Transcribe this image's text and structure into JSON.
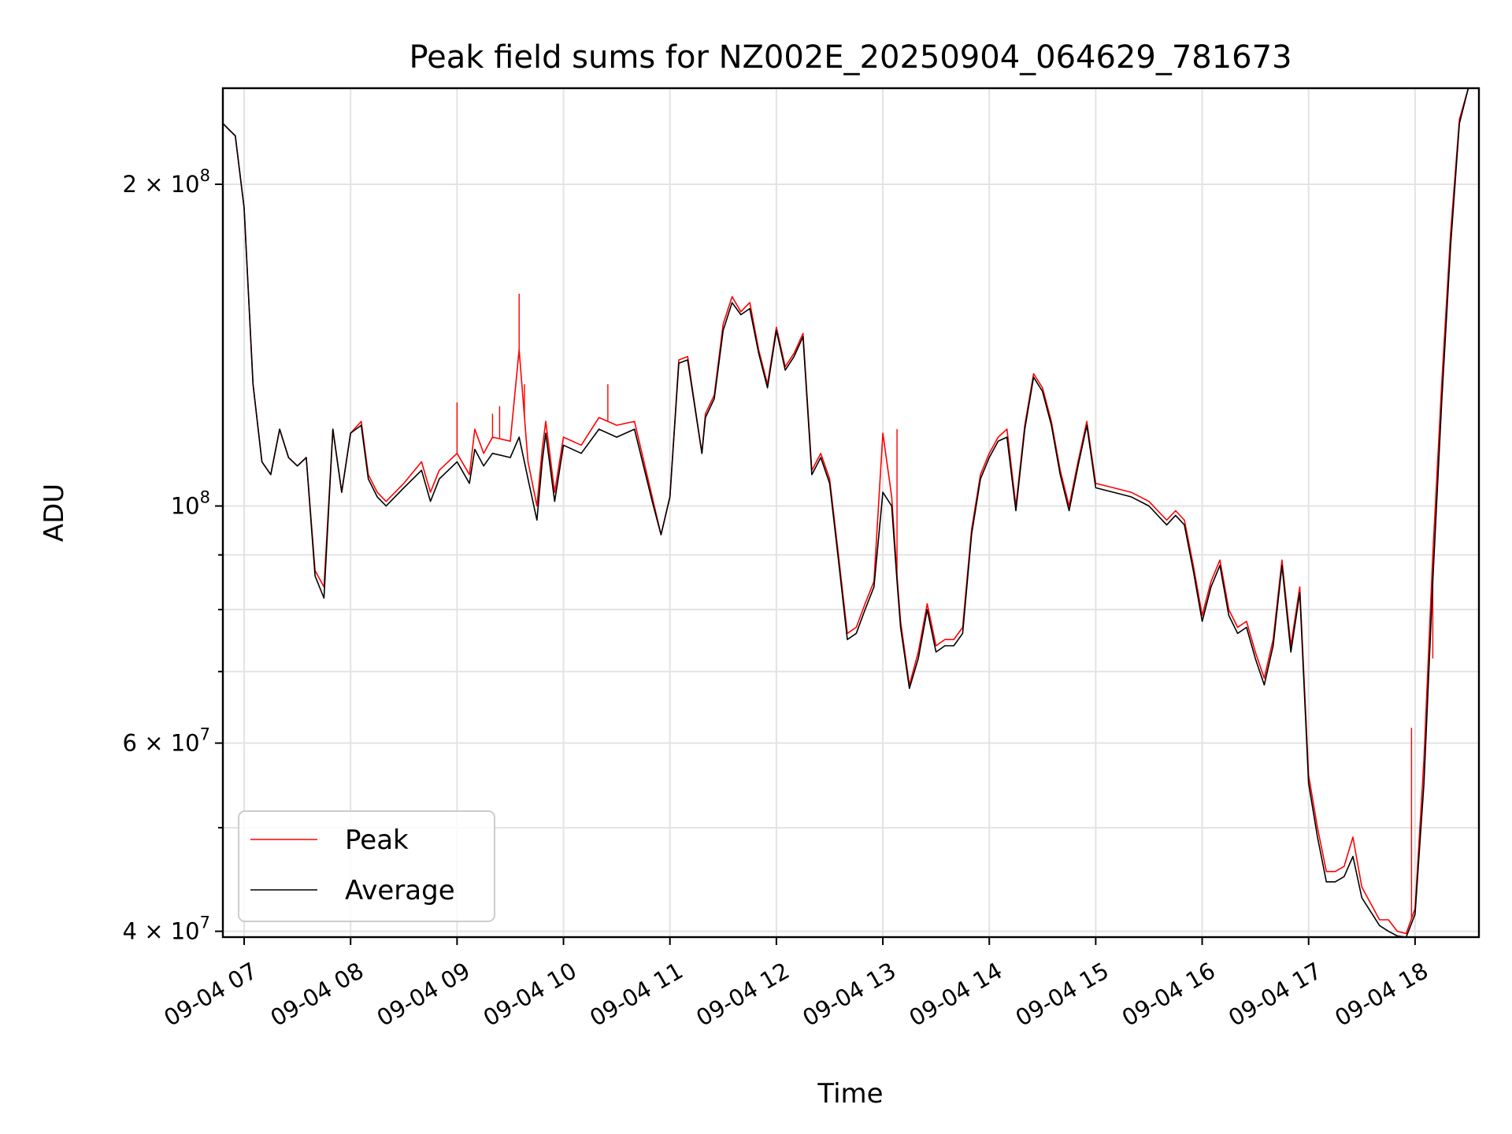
{
  "chart_data": {
    "type": "line",
    "title": "Peak field sums for NZ002E_20250904_064629_781673",
    "xlabel": "Time",
    "ylabel": "ADU",
    "y_scale": "log",
    "ylim": [
      39500000,
      246000000
    ],
    "xlim": [
      "09-04 06:48",
      "09-04 18:36"
    ],
    "grid": true,
    "legend_position": "lower left",
    "x_ticks": [
      "09-04 07",
      "09-04 08",
      "09-04 09",
      "09-04 10",
      "09-04 11",
      "09-04 12",
      "09-04 13",
      "09-04 14",
      "09-04 15",
      "09-04 16",
      "09-04 17",
      "09-04 18"
    ],
    "y_ticks": [
      {
        "value": 40000000,
        "label_base": "4 × 10",
        "label_exp": "7"
      },
      {
        "value": 60000000,
        "label_base": "6 × 10",
        "label_exp": "7"
      },
      {
        "value": 100000000,
        "label_base": "10",
        "label_exp": "8"
      },
      {
        "value": 200000000,
        "label_base": "2 × 10",
        "label_exp": "8"
      }
    ],
    "y_minor_ticks": [
      50000000,
      70000000,
      80000000,
      90000000
    ],
    "series": [
      {
        "name": "Peak",
        "color": "#ff0000",
        "x": [
          "09-04 06:48",
          "09-04 06:55",
          "09-04 07:00",
          "09-04 07:05",
          "09-04 07:10",
          "09-04 07:15",
          "09-04 07:20",
          "09-04 07:25",
          "09-04 07:30",
          "09-04 07:35",
          "09-04 07:40",
          "09-04 07:45",
          "09-04 07:50",
          "09-04 07:55",
          "09-04 08:00",
          "09-04 08:06",
          "09-04 08:10",
          "09-04 08:15",
          "09-04 08:20",
          "09-04 08:30",
          "09-04 08:40",
          "09-04 08:45",
          "09-04 08:50",
          "09-04 09:00",
          "09-04 09:07",
          "09-04 09:10",
          "09-04 09:15",
          "09-04 09:20",
          "09-04 09:30",
          "09-04 09:35",
          "09-04 09:40",
          "09-04 09:45",
          "09-04 09:48",
          "09-04 09:50",
          "09-04 09:55",
          "09-04 10:00",
          "09-04 10:10",
          "09-04 10:20",
          "09-04 10:30",
          "09-04 10:40",
          "09-04 10:50",
          "09-04 10:55",
          "09-04 11:00",
          "09-04 11:05",
          "09-04 11:10",
          "09-04 11:18",
          "09-04 11:20",
          "09-04 11:25",
          "09-04 11:30",
          "09-04 11:35",
          "09-04 11:40",
          "09-04 11:45",
          "09-04 11:50",
          "09-04 11:55",
          "09-04 12:00",
          "09-04 12:05",
          "09-04 12:10",
          "09-04 12:15",
          "09-04 12:20",
          "09-04 12:25",
          "09-04 12:30",
          "09-04 12:35",
          "09-04 12:40",
          "09-04 12:45",
          "09-04 12:50",
          "09-04 12:55",
          "09-04 13:00",
          "09-04 13:05",
          "09-04 13:08",
          "09-04 13:10",
          "09-04 13:15",
          "09-04 13:20",
          "09-04 13:25",
          "09-04 13:30",
          "09-04 13:35",
          "09-04 13:40",
          "09-04 13:45",
          "09-04 13:50",
          "09-04 13:55",
          "09-04 14:00",
          "09-04 14:05",
          "09-04 14:10",
          "09-04 14:15",
          "09-04 14:20",
          "09-04 14:25",
          "09-04 14:30",
          "09-04 14:35",
          "09-04 14:40",
          "09-04 14:45",
          "09-04 14:50",
          "09-04 14:55",
          "09-04 15:00",
          "09-04 15:10",
          "09-04 15:20",
          "09-04 15:30",
          "09-04 15:40",
          "09-04 15:45",
          "09-04 15:50",
          "09-04 15:55",
          "09-04 16:00",
          "09-04 16:05",
          "09-04 16:10",
          "09-04 16:15",
          "09-04 16:20",
          "09-04 16:25",
          "09-04 16:30",
          "09-04 16:35",
          "09-04 16:40",
          "09-04 16:45",
          "09-04 16:50",
          "09-04 16:55",
          "09-04 17:00",
          "09-04 17:05",
          "09-04 17:10",
          "09-04 17:15",
          "09-04 17:20",
          "09-04 17:25",
          "09-04 17:30",
          "09-04 17:40",
          "09-04 17:45",
          "09-04 17:50",
          "09-04 17:55",
          "09-04 18:00",
          "09-04 18:05",
          "09-04 18:10",
          "09-04 18:15",
          "09-04 18:20",
          "09-04 18:25",
          "09-04 18:30",
          "09-04 18:36"
        ],
        "values": [
          228000000,
          222000000,
          190000000,
          130000000,
          110000000,
          107000000,
          118000000,
          111000000,
          109000000,
          111000000,
          87000000,
          84000000,
          118000000,
          103000000,
          117000000,
          120000000,
          107000000,
          103000000,
          101000000,
          105000000,
          110000000,
          103000000,
          108000000,
          112000000,
          107000000,
          118000000,
          112000000,
          116000000,
          115000000,
          140000000,
          110000000,
          100000000,
          113000000,
          120000000,
          103000000,
          116000000,
          114000000,
          121000000,
          119000000,
          120000000,
          102000000,
          94000000,
          102000000,
          137000000,
          138000000,
          112000000,
          122000000,
          127000000,
          148000000,
          157000000,
          152000000,
          155000000,
          140000000,
          130000000,
          147000000,
          135000000,
          139000000,
          145000000,
          108000000,
          112000000,
          106000000,
          90000000,
          76000000,
          77000000,
          81000000,
          85000000,
          117000000,
          102000000,
          86000000,
          78000000,
          68000000,
          73000000,
          81000000,
          74000000,
          75000000,
          75000000,
          77000000,
          95000000,
          107000000,
          112000000,
          116000000,
          118000000,
          100000000,
          119000000,
          133000000,
          129000000,
          120000000,
          108000000,
          100000000,
          110000000,
          120000000,
          105000000,
          104000000,
          103000000,
          101000000,
          97000000,
          99000000,
          97000000,
          88000000,
          79000000,
          85000000,
          89000000,
          80000000,
          77000000,
          78000000,
          73000000,
          69000000,
          75000000,
          89000000,
          74000000,
          84000000,
          56000000,
          50000000,
          45500000,
          45500000,
          46000000,
          49000000,
          44000000,
          41000000,
          41000000,
          40000000,
          39800000,
          42000000,
          58000000,
          90000000,
          130000000,
          180000000,
          230000000,
          246000000,
          246000000
        ],
        "spikes": [
          {
            "x": "09-04 09:35",
            "y": 158000000
          },
          {
            "x": "09-04 09:38",
            "y": 130000000
          },
          {
            "x": "09-04 09:24",
            "y": 124000000
          },
          {
            "x": "09-04 09:20",
            "y": 122000000
          },
          {
            "x": "09-04 09:00",
            "y": 125000000
          },
          {
            "x": "09-04 10:25",
            "y": 130000000
          },
          {
            "x": "09-04 13:08",
            "y": 118000000
          },
          {
            "x": "09-04 17:58",
            "y": 62000000
          },
          {
            "x": "09-04 18:08",
            "y": 72000000
          },
          {
            "x": "09-04 18:10",
            "y": 72000000
          }
        ]
      },
      {
        "name": "Average",
        "color": "#000000",
        "x": [
          "09-04 06:48",
          "09-04 06:55",
          "09-04 07:00",
          "09-04 07:05",
          "09-04 07:10",
          "09-04 07:15",
          "09-04 07:20",
          "09-04 07:25",
          "09-04 07:30",
          "09-04 07:35",
          "09-04 07:40",
          "09-04 07:45",
          "09-04 07:50",
          "09-04 07:55",
          "09-04 08:00",
          "09-04 08:06",
          "09-04 08:10",
          "09-04 08:15",
          "09-04 08:20",
          "09-04 08:30",
          "09-04 08:40",
          "09-04 08:45",
          "09-04 08:50",
          "09-04 09:00",
          "09-04 09:07",
          "09-04 09:10",
          "09-04 09:15",
          "09-04 09:20",
          "09-04 09:30",
          "09-04 09:35",
          "09-04 09:40",
          "09-04 09:45",
          "09-04 09:48",
          "09-04 09:50",
          "09-04 09:55",
          "09-04 10:00",
          "09-04 10:10",
          "09-04 10:20",
          "09-04 10:30",
          "09-04 10:40",
          "09-04 10:50",
          "09-04 10:55",
          "09-04 11:00",
          "09-04 11:05",
          "09-04 11:10",
          "09-04 11:18",
          "09-04 11:20",
          "09-04 11:25",
          "09-04 11:30",
          "09-04 11:35",
          "09-04 11:40",
          "09-04 11:45",
          "09-04 11:50",
          "09-04 11:55",
          "09-04 12:00",
          "09-04 12:05",
          "09-04 12:10",
          "09-04 12:15",
          "09-04 12:20",
          "09-04 12:25",
          "09-04 12:30",
          "09-04 12:35",
          "09-04 12:40",
          "09-04 12:45",
          "09-04 12:50",
          "09-04 12:55",
          "09-04 13:00",
          "09-04 13:05",
          "09-04 13:08",
          "09-04 13:10",
          "09-04 13:15",
          "09-04 13:20",
          "09-04 13:25",
          "09-04 13:30",
          "09-04 13:35",
          "09-04 13:40",
          "09-04 13:45",
          "09-04 13:50",
          "09-04 13:55",
          "09-04 14:00",
          "09-04 14:05",
          "09-04 14:10",
          "09-04 14:15",
          "09-04 14:20",
          "09-04 14:25",
          "09-04 14:30",
          "09-04 14:35",
          "09-04 14:40",
          "09-04 14:45",
          "09-04 14:50",
          "09-04 14:55",
          "09-04 15:00",
          "09-04 15:10",
          "09-04 15:20",
          "09-04 15:30",
          "09-04 15:40",
          "09-04 15:45",
          "09-04 15:50",
          "09-04 15:55",
          "09-04 16:00",
          "09-04 16:05",
          "09-04 16:10",
          "09-04 16:15",
          "09-04 16:20",
          "09-04 16:25",
          "09-04 16:30",
          "09-04 16:35",
          "09-04 16:40",
          "09-04 16:45",
          "09-04 16:50",
          "09-04 16:55",
          "09-04 17:00",
          "09-04 17:05",
          "09-04 17:10",
          "09-04 17:15",
          "09-04 17:20",
          "09-04 17:25",
          "09-04 17:30",
          "09-04 17:40",
          "09-04 17:45",
          "09-04 17:50",
          "09-04 17:55",
          "09-04 18:00",
          "09-04 18:05",
          "09-04 18:10",
          "09-04 18:15",
          "09-04 18:20",
          "09-04 18:25",
          "09-04 18:30",
          "09-04 18:36"
        ],
        "values": [
          228000000,
          222000000,
          190000000,
          130000000,
          110000000,
          107000000,
          118000000,
          111000000,
          109000000,
          111000000,
          86000000,
          82000000,
          118000000,
          103000000,
          117000000,
          119000000,
          106000000,
          102000000,
          100000000,
          104000000,
          108000000,
          101000000,
          106000000,
          110000000,
          105000000,
          113000000,
          109000000,
          112000000,
          111000000,
          116000000,
          106000000,
          97000000,
          110000000,
          117000000,
          101000000,
          114000000,
          112000000,
          118000000,
          116000000,
          118000000,
          101000000,
          94000000,
          102000000,
          136000000,
          137000000,
          112000000,
          121000000,
          126000000,
          146000000,
          155000000,
          151000000,
          153000000,
          139000000,
          129000000,
          146000000,
          134000000,
          138000000,
          144000000,
          107000000,
          111000000,
          105000000,
          89000000,
          75000000,
          76000000,
          80000000,
          84000000,
          103000000,
          100000000,
          85000000,
          77000000,
          67500000,
          72000000,
          80000000,
          73000000,
          74000000,
          74000000,
          76000000,
          94000000,
          106000000,
          111000000,
          115000000,
          116000000,
          99000000,
          118000000,
          132000000,
          128000000,
          119000000,
          107000000,
          99000000,
          109000000,
          119000000,
          104000000,
          103000000,
          102000000,
          100000000,
          96000000,
          98000000,
          96000000,
          87000000,
          78000000,
          84000000,
          88000000,
          79000000,
          76000000,
          77000000,
          72000000,
          68000000,
          74000000,
          88000000,
          73000000,
          83000000,
          55000000,
          49000000,
          44500000,
          44500000,
          45000000,
          47000000,
          43000000,
          40500000,
          40000000,
          39600000,
          39500000,
          41500000,
          55000000,
          85000000,
          125000000,
          175000000,
          228000000,
          246000000,
          246000000
        ]
      }
    ]
  },
  "legend": {
    "items": [
      {
        "label": "Peak",
        "color": "#ff0000"
      },
      {
        "label": "Average",
        "color": "#000000"
      }
    ]
  }
}
